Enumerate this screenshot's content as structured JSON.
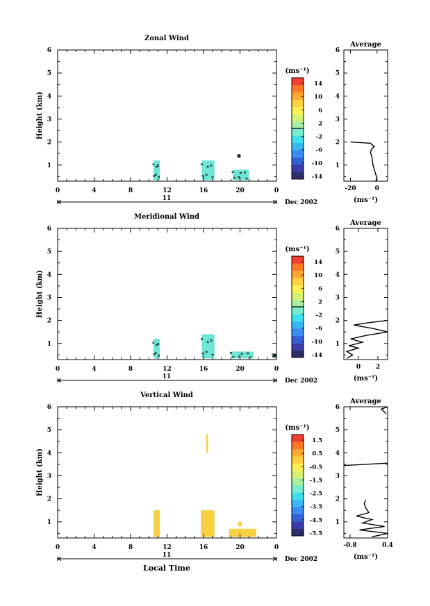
{
  "panels": [
    {
      "title": "Zonal Wind",
      "ylabel": "Height (km)",
      "ytick_labels": [
        "1",
        "2",
        "3",
        "4",
        "5",
        "6"
      ],
      "xtick_labels": [
        "0",
        "4",
        "8",
        "12",
        "16",
        "20",
        "0"
      ],
      "day_label": "11",
      "date_label": "Dec 2002",
      "unit_label": "(ms⁻¹)",
      "colorbar_labels": [
        "14",
        "10",
        "6",
        "2",
        "-2",
        "-6",
        "-10",
        "-14"
      ],
      "profile_title": "Average",
      "profile_xtick_labels": [
        "-20",
        "0"
      ],
      "profile_unit": "(ms⁻¹)"
    },
    {
      "title": "Meridional Wind",
      "ylabel": "Height (km)",
      "ytick_labels": [
        "1",
        "2",
        "3",
        "4",
        "5",
        "6"
      ],
      "xtick_labels": [
        "0",
        "4",
        "8",
        "12",
        "16",
        "20",
        "0"
      ],
      "day_label": "11",
      "date_label": "Dec 2002",
      "unit_label": "(ms⁻¹)",
      "colorbar_labels": [
        "14",
        "10",
        "6",
        "2",
        "-2",
        "-6",
        "-10",
        "-14"
      ],
      "profile_title": "Average",
      "profile_xtick_labels": [
        "0",
        "2"
      ],
      "profile_unit": "(ms⁻¹)"
    },
    {
      "title": "Vertical Wind",
      "ylabel": "Height (km)",
      "ytick_labels": [
        "1",
        "2",
        "3",
        "4",
        "5",
        "6"
      ],
      "xtick_labels": [
        "0",
        "4",
        "8",
        "12",
        "16",
        "20",
        "0"
      ],
      "day_label": "11",
      "date_label": "Dec 2002",
      "unit_label": "(ms⁻¹)",
      "colorbar_labels": [
        "1.5",
        "0.5",
        "-0.5",
        "-1.5",
        "-2.5",
        "-3.5",
        "-4.5",
        "-5.5"
      ],
      "profile_title": "Average",
      "profile_xtick_labels": [
        "-0.8",
        "0.4"
      ],
      "profile_unit": "(ms⁻¹)"
    }
  ],
  "xlabel": "Local Time",
  "colors": {
    "colormap": [
      "#2b2f6b",
      "#3a3aa8",
      "#3460d6",
      "#3a8cf0",
      "#38b6f5",
      "#3ee0ec",
      "#78ecd0",
      "#a8f0a0",
      "#d8f070",
      "#fff050",
      "#ffd040",
      "#ffa830",
      "#ff7828",
      "#f04030"
    ],
    "zonal_patch": "#5fe3d0",
    "meridional_patch": "#5fe3d0",
    "vertical_patch": "#f6cc2e"
  },
  "chart_data": [
    {
      "type": "heatmap",
      "title": "Zonal Wind",
      "xlabel": "",
      "ylabel": "Height (km)",
      "xlim": [
        0,
        24
      ],
      "ylim": [
        0.3,
        6
      ],
      "x_unit": "Local Time (h)",
      "colorbar_range": [
        -14,
        14
      ],
      "cells": [
        {
          "x": [
            10.5,
            11.2
          ],
          "y": [
            0.35,
            1.2
          ]
        },
        {
          "x": [
            15.8,
            17.2
          ],
          "y": [
            0.35,
            1.2
          ]
        },
        {
          "x": [
            19.2,
            21.0
          ],
          "y": [
            0.35,
            0.8
          ]
        },
        {
          "x": [
            19.8,
            20.0
          ],
          "y": [
            1.35,
            1.45
          ]
        }
      ],
      "profile": {
        "title": "Average",
        "xlim": [
          -25,
          8
        ],
        "xticks": [
          -20,
          0
        ],
        "height": [
          0.3,
          0.45,
          0.6,
          0.8,
          1.0,
          1.2,
          1.4,
          1.55,
          1.7,
          1.8,
          1.95,
          2.0
        ],
        "value": [
          -1,
          0,
          -1,
          -2,
          -3,
          -3.5,
          -4,
          -5,
          -4,
          -2,
          -5,
          -20
        ]
      }
    },
    {
      "type": "heatmap",
      "title": "Meridional Wind",
      "xlabel": "",
      "ylabel": "Height (km)",
      "xlim": [
        0,
        24
      ],
      "ylim": [
        0.3,
        6
      ],
      "x_unit": "Local Time (h)",
      "colorbar_range": [
        -14,
        14
      ],
      "cells": [
        {
          "x": [
            10.5,
            11.2
          ],
          "y": [
            0.35,
            1.2
          ]
        },
        {
          "x": [
            15.8,
            17.2
          ],
          "y": [
            0.35,
            1.4
          ]
        },
        {
          "x": [
            19.0,
            21.5
          ],
          "y": [
            0.35,
            0.65
          ]
        },
        {
          "x": [
            23.6,
            24.0
          ],
          "y": [
            0.4,
            0.55
          ]
        }
      ],
      "profile": {
        "title": "Average",
        "xlim": [
          -1.5,
          3
        ],
        "xticks": [
          0,
          2
        ],
        "height": [
          0.35,
          0.5,
          0.65,
          0.8,
          0.9,
          1.05,
          1.2,
          1.35,
          1.5,
          1.65,
          1.8,
          1.9,
          2.0
        ],
        "value": [
          -1.2,
          -0.6,
          -1.2,
          0.0,
          -1.0,
          0.4,
          -0.8,
          0.8,
          3.0,
          1.5,
          -0.5,
          1.0,
          3.0
        ]
      }
    },
    {
      "type": "heatmap",
      "title": "Vertical Wind",
      "xlabel": "Local Time",
      "ylabel": "Height (km)",
      "xlim": [
        0,
        24
      ],
      "ylim": [
        0.3,
        6
      ],
      "x_unit": "Local Time (h)",
      "colorbar_range": [
        -5.5,
        1.5
      ],
      "cells": [
        {
          "x": [
            10.5,
            11.2
          ],
          "y": [
            0.35,
            1.5
          ]
        },
        {
          "x": [
            15.7,
            17.2
          ],
          "y": [
            0.35,
            1.5
          ]
        },
        {
          "x": [
            16.3,
            16.5
          ],
          "y": [
            4.0,
            4.8
          ]
        },
        {
          "x": [
            18.8,
            21.8
          ],
          "y": [
            0.35,
            0.7
          ]
        },
        {
          "x": [
            19.8,
            20.2
          ],
          "y": [
            0.8,
            1.0
          ]
        }
      ],
      "profile": {
        "title": "Average",
        "xlim": [
          -1.0,
          0.4
        ],
        "xticks": [
          -0.8,
          0.4
        ],
        "segments": [
          {
            "height": [
              0.35,
              0.5,
              0.65,
              0.8,
              0.95,
              1.1,
              1.25,
              1.4,
              1.6,
              1.8,
              1.95
            ],
            "value": [
              -0.1,
              0.4,
              -0.5,
              0.3,
              -0.4,
              -0.1,
              -0.6,
              -0.2,
              -0.3,
              -0.35,
              -0.3
            ]
          },
          {
            "height": [
              3.45,
              3.55
            ],
            "value": [
              -1.0,
              0.4
            ]
          },
          {
            "height": [
              5.7,
              5.9,
              6.0
            ],
            "value": [
              0.35,
              0.2,
              0.4
            ]
          }
        ]
      }
    }
  ]
}
